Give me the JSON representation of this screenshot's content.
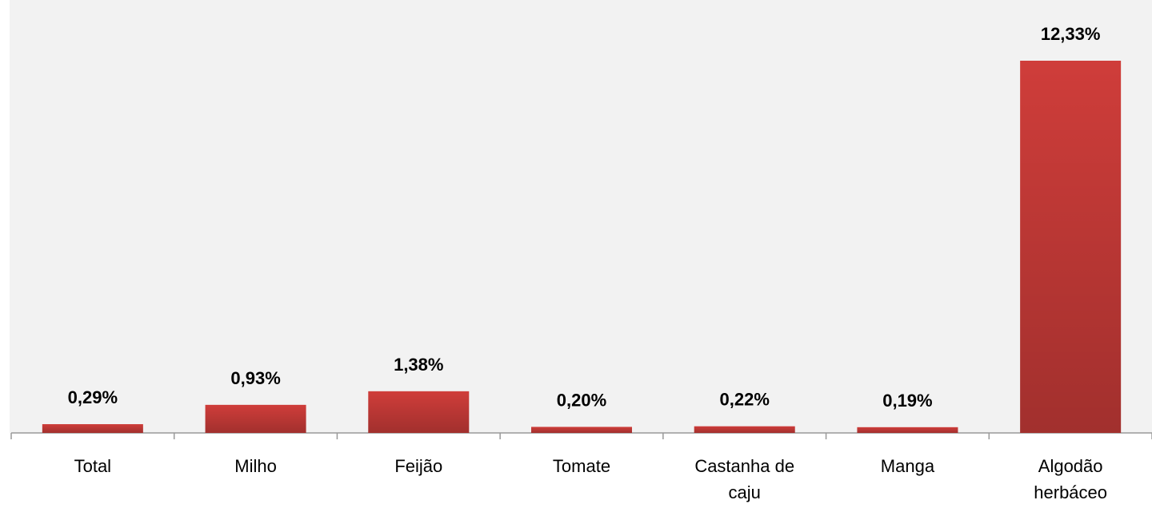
{
  "chart_data": {
    "type": "bar",
    "categories": [
      "Total",
      "Milho",
      "Feijão",
      "Tomate",
      "Castanha de caju",
      "Manga",
      "Algodão herbáceo"
    ],
    "values": [
      0.29,
      0.93,
      1.38,
      0.2,
      0.22,
      0.19,
      12.33
    ],
    "value_labels": [
      "0,29%",
      "0,93%",
      "1,38%",
      "0,20%",
      "0,22%",
      "0,19%",
      "12,33%"
    ],
    "color": "#cf3d3a"
  }
}
